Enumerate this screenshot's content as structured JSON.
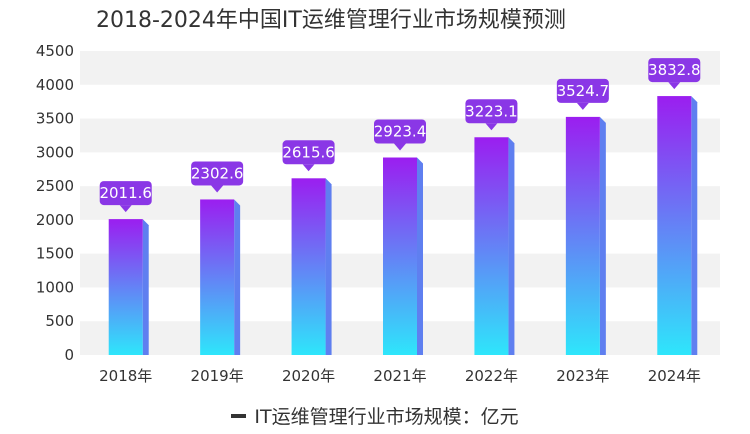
{
  "chart_data": {
    "type": "bar",
    "title": "2018-2024年中国IT运维管理行业市场规模预测",
    "categories": [
      "2018年",
      "2019年",
      "2020年",
      "2021年",
      "2022年",
      "2023年",
      "2024年"
    ],
    "series": [
      {
        "name": "IT运维管理行业市场规模：亿元",
        "values": [
          2011.6,
          2302.6,
          2615.6,
          2923.4,
          3223.1,
          3524.7,
          3832.8
        ]
      }
    ],
    "data_labels": [
      "2011.6",
      "2302.6",
      "2615.6",
      "2923.4",
      "3223.1",
      "3524.7",
      "3832.8"
    ],
    "y_ticks": [
      "0",
      "500",
      "1000",
      "1500",
      "2000",
      "2500",
      "3000",
      "3500",
      "4000",
      "4500"
    ],
    "ylim": [
      0,
      4500
    ],
    "grid": "alternating bands",
    "legend_position": "bottom-center",
    "colors": {
      "bar_top": "#9b1ef0",
      "bar_bottom": "#2ee6fb",
      "bar_side": "#5f7ff0",
      "label_bg": "#8a37e6",
      "band": "#f2f2f2",
      "text": "#333333"
    }
  }
}
